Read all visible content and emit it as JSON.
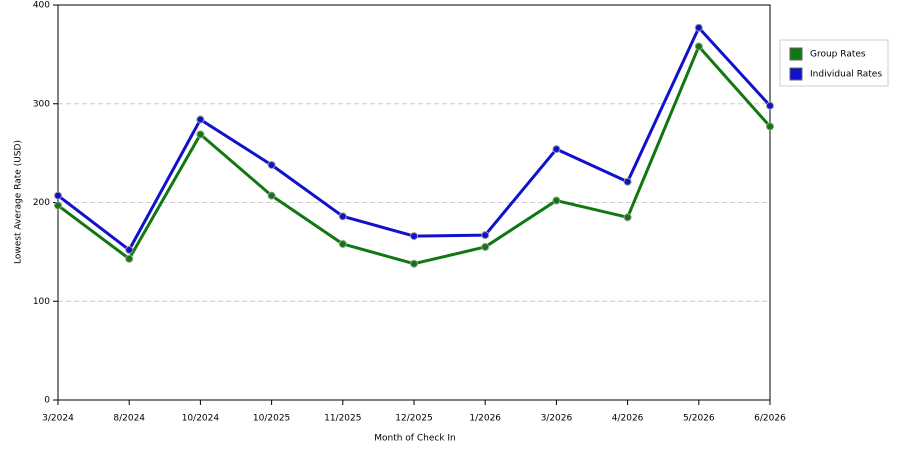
{
  "chart_data": {
    "type": "line",
    "x_label": "Month of Check In",
    "y_label": "Lowest Average Rate (USD)",
    "categories": [
      "3/2024",
      "8/2024",
      "10/2024",
      "10/2025",
      "11/2025",
      "12/2025",
      "1/2026",
      "3/2026",
      "4/2026",
      "5/2026",
      "6/2026"
    ],
    "series": [
      {
        "name": "Group Rates",
        "color": "#117711",
        "values": [
          197,
          143,
          269,
          207,
          158,
          138,
          155,
          202,
          185,
          358,
          277
        ]
      },
      {
        "name": "Individual Rates",
        "color": "#1111cc",
        "values": [
          207,
          152,
          284,
          238,
          186,
          166,
          167,
          254,
          221,
          377,
          298
        ]
      }
    ],
    "ylim": [
      0,
      400
    ],
    "yticks": [
      0,
      100,
      200,
      300,
      400
    ],
    "grid": true
  }
}
